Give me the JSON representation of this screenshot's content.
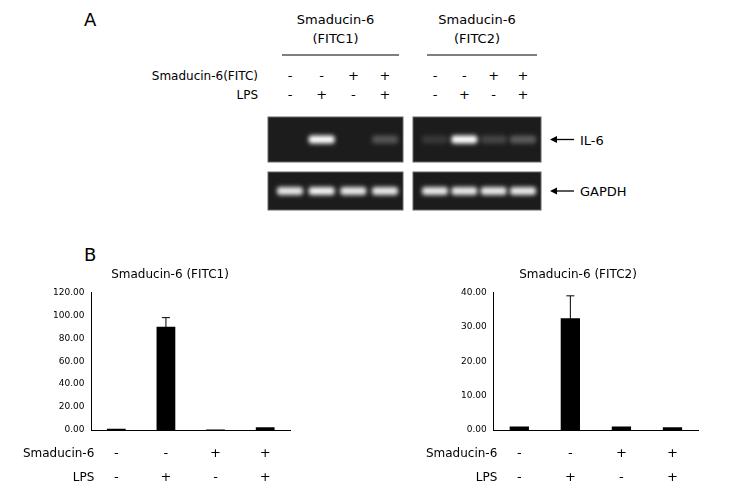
{
  "panel_a": {
    "label": "A",
    "row_labels": [
      "Smaducin-6(FITC)",
      "LPS"
    ],
    "band_labels": [
      "IL-6",
      "GAPDH"
    ],
    "groups": [
      {
        "title_lines": [
          "Smaducin-6",
          "(FITC1)"
        ],
        "marks": [
          [
            "-",
            "-",
            "+",
            "+"
          ],
          [
            "-",
            "+",
            "-",
            "+"
          ]
        ],
        "intensity": [
          [
            0,
            1,
            0,
            0.25
          ],
          [
            0.9,
            0.95,
            0.9,
            0.9
          ]
        ]
      },
      {
        "title_lines": [
          "Smaducin-6",
          "(FITC2)"
        ],
        "marks": [
          [
            "-",
            "-",
            "+",
            "+"
          ],
          [
            "-",
            "+",
            "-",
            "+"
          ]
        ],
        "intensity": [
          [
            0.12,
            1,
            0.18,
            0.28
          ],
          [
            0.9,
            0.9,
            0.9,
            0.9
          ]
        ]
      }
    ]
  },
  "panel_b": {
    "label": "B"
  },
  "chart_data": [
    {
      "type": "bar",
      "title": "Smaducin-6 (FITC1)",
      "categories": [
        null,
        null,
        null,
        null
      ],
      "values": [
        1,
        90,
        0.5,
        2.5
      ],
      "errors": [
        0,
        8,
        0,
        0
      ],
      "color": "#000000",
      "ylim": [
        0,
        120
      ],
      "yticks": [
        {
          "value": 0,
          "label": "0.00"
        },
        {
          "value": 20,
          "label": "20.00"
        },
        {
          "value": 40,
          "label": "40.00"
        },
        {
          "value": 60,
          "label": "60.00"
        },
        {
          "value": 80,
          "label": "80.00"
        },
        {
          "value": 100,
          "label": "100.00"
        },
        {
          "value": 120,
          "label": "120.00"
        }
      ],
      "grid": false,
      "tick_labels": "y",
      "annotations": [
        {
          "label": "Smaducin-6",
          "marks": [
            "-",
            "-",
            "+",
            "+"
          ]
        },
        {
          "label": "LPS",
          "marks": [
            "-",
            "+",
            "-",
            "+"
          ]
        }
      ]
    },
    {
      "type": "bar",
      "title": "Smaducin-6 (FITC2)",
      "categories": [
        null,
        null,
        null,
        null
      ],
      "values": [
        1,
        32.5,
        1,
        0.8
      ],
      "errors": [
        0,
        6.5,
        0,
        0
      ],
      "color": "#000000",
      "ylim": [
        0,
        40
      ],
      "yticks": [
        {
          "value": 0,
          "label": "0.00"
        },
        {
          "value": 10,
          "label": "10.00"
        },
        {
          "value": 20,
          "label": "20.00"
        },
        {
          "value": 30,
          "label": "30.00"
        },
        {
          "value": 40,
          "label": "40.00"
        }
      ],
      "grid": false,
      "tick_labels": "y",
      "annotations": [
        {
          "label": "Smaducin-6",
          "marks": [
            "-",
            "-",
            "+",
            "+"
          ]
        },
        {
          "label": "LPS",
          "marks": [
            "-",
            "+",
            "-",
            "+"
          ]
        }
      ]
    }
  ]
}
